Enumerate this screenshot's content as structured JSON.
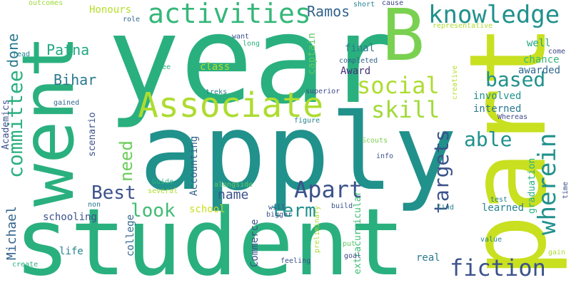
{
  "colors": {
    "background": "#ffffff",
    "teal": "#21918c",
    "green": "#2ab07f",
    "lime": "#addc30",
    "yellow": "#fde725",
    "blue": "#3b528b",
    "purple": "#440154"
  },
  "words": [
    {
      "text": "year",
      "size": 1.0,
      "color": "#2ab07f",
      "orientation": "horizontal"
    },
    {
      "text": "student",
      "size": 0.98,
      "color": "#2ab07f",
      "orientation": "horizontal"
    },
    {
      "text": "apply",
      "size": 0.95,
      "color": "#21918c",
      "orientation": "horizontal"
    },
    {
      "text": "part",
      "size": 0.92,
      "color": "#c8e020",
      "orientation": "vertical"
    },
    {
      "text": "went",
      "size": 0.7,
      "color": "#2ab07f",
      "orientation": "vertical"
    },
    {
      "text": "B",
      "size": 0.65,
      "color": "#7ad151",
      "orientation": "horizontal"
    },
    {
      "text": "Associate",
      "size": 0.4,
      "color": "#addc30",
      "orientation": "horizontal"
    },
    {
      "text": "activities",
      "size": 0.32,
      "color": "#35b779",
      "orientation": "horizontal"
    },
    {
      "text": "knowledge",
      "size": 0.3,
      "color": "#21918c",
      "orientation": "horizontal"
    },
    {
      "text": "wherein",
      "size": 0.3,
      "color": "#21918c",
      "orientation": "vertical"
    },
    {
      "text": "fiction",
      "size": 0.28,
      "color": "#3b528b",
      "orientation": "horizontal"
    },
    {
      "text": "Apart",
      "size": 0.28,
      "color": "#3b528b",
      "orientation": "horizontal"
    },
    {
      "text": "social",
      "size": 0.27,
      "color": "#addc30",
      "orientation": "horizontal"
    },
    {
      "text": "skill",
      "size": 0.26,
      "color": "#a0da39",
      "orientation": "horizontal"
    },
    {
      "text": "targets",
      "size": 0.25,
      "color": "#3b528b",
      "orientation": "vertical"
    },
    {
      "text": "committee",
      "size": 0.24,
      "color": "#2ab07f",
      "orientation": "vertical"
    },
    {
      "text": "able",
      "size": 0.24,
      "color": "#21918c",
      "orientation": "horizontal"
    },
    {
      "text": "based",
      "size": 0.24,
      "color": "#21918c",
      "orientation": "horizontal"
    },
    {
      "text": "look",
      "size": 0.23,
      "color": "#3fbc73",
      "orientation": "horizontal"
    },
    {
      "text": "Best",
      "size": 0.23,
      "color": "#3b528b",
      "orientation": "horizontal"
    },
    {
      "text": "term",
      "size": 0.22,
      "color": "#21918c",
      "orientation": "horizontal"
    },
    {
      "text": "need",
      "size": 0.21,
      "color": "#6ccd5a",
      "orientation": "vertical"
    },
    {
      "text": "Ramos",
      "size": 0.17,
      "color": "#33638d",
      "orientation": "horizontal"
    },
    {
      "text": "Patna",
      "size": 0.16,
      "color": "#22a884",
      "orientation": "horizontal"
    },
    {
      "text": "Bihar",
      "size": 0.16,
      "color": "#2a788e",
      "orientation": "horizontal"
    },
    {
      "text": "done",
      "size": 0.15,
      "color": "#2a788e",
      "orientation": "vertical"
    },
    {
      "text": "Michael",
      "size": 0.15,
      "color": "#33638d",
      "orientation": "vertical"
    },
    {
      "text": "name",
      "size": 0.15,
      "color": "#3b528b",
      "orientation": "horizontal"
    },
    {
      "text": "Honours",
      "size": 0.12,
      "color": "#b5de2b",
      "orientation": "horizontal"
    },
    {
      "text": "class",
      "size": 0.12,
      "color": "#b5de2b",
      "orientation": "horizontal"
    },
    {
      "text": "chance",
      "size": 0.12,
      "color": "#35b779",
      "orientation": "horizontal"
    },
    {
      "text": "awarded",
      "size": 0.12,
      "color": "#31688e",
      "orientation": "horizontal"
    },
    {
      "text": "involved",
      "size": 0.12,
      "color": "#21918c",
      "orientation": "horizontal"
    },
    {
      "text": "interned",
      "size": 0.12,
      "color": "#2a788e",
      "orientation": "horizontal"
    },
    {
      "text": "captain",
      "size": 0.12,
      "color": "#5ec962",
      "orientation": "vertical"
    },
    {
      "text": "final",
      "size": 0.12,
      "color": "#2a788e",
      "orientation": "horizontal"
    },
    {
      "text": "Award",
      "size": 0.12,
      "color": "#472f7d",
      "orientation": "horizontal"
    },
    {
      "text": "well",
      "size": 0.12,
      "color": "#22a884",
      "orientation": "horizontal"
    },
    {
      "text": "schooling",
      "size": 0.12,
      "color": "#3b528b",
      "orientation": "horizontal"
    },
    {
      "text": "school",
      "size": 0.11,
      "color": "#c8e020",
      "orientation": "horizontal"
    },
    {
      "text": "college",
      "size": 0.11,
      "color": "#31688e",
      "orientation": "vertical"
    },
    {
      "text": "life",
      "size": 0.11,
      "color": "#26828e",
      "orientation": "horizontal"
    },
    {
      "text": "real",
      "size": 0.11,
      "color": "#2a788e",
      "orientation": "horizontal"
    },
    {
      "text": "learned",
      "size": 0.11,
      "color": "#26828e",
      "orientation": "horizontal"
    },
    {
      "text": "Commerce",
      "size": 0.11,
      "color": "#3b528b",
      "orientation": "vertical"
    },
    {
      "text": "Accounting",
      "size": 0.11,
      "color": "#33638d",
      "orientation": "vertical"
    },
    {
      "text": "Academics",
      "size": 0.1,
      "color": "#3b528b",
      "orientation": "vertical"
    },
    {
      "text": "scenario",
      "size": 0.1,
      "color": "#3b528b",
      "orientation": "vertical"
    },
    {
      "text": "extracurricular",
      "size": 0.1,
      "color": "#3fbc73",
      "orientation": "vertical"
    },
    {
      "text": "graduation",
      "size": 0.1,
      "color": "#2ab07f",
      "orientation": "vertical"
    },
    {
      "text": "outcomes",
      "size": 0.06,
      "color": "#9fda3a",
      "orientation": "horizontal"
    },
    {
      "text": "short",
      "size": 0.06,
      "color": "#26828e",
      "orientation": "horizontal"
    },
    {
      "text": "cause",
      "size": 0.06,
      "color": "#404688",
      "orientation": "horizontal"
    },
    {
      "text": "representative",
      "size": 0.06,
      "color": "#addc30",
      "orientation": "horizontal"
    },
    {
      "text": "role",
      "size": 0.06,
      "color": "#31688e",
      "orientation": "horizontal"
    },
    {
      "text": "want",
      "size": 0.06,
      "color": "#3b528b",
      "orientation": "horizontal"
    },
    {
      "text": "long",
      "size": 0.06,
      "color": "#2ab07f",
      "orientation": "horizontal"
    },
    {
      "text": "come",
      "size": 0.06,
      "color": "#3e4989",
      "orientation": "horizontal"
    },
    {
      "text": "read",
      "size": 0.06,
      "color": "#26828e",
      "orientation": "horizontal"
    },
    {
      "text": "free",
      "size": 0.06,
      "color": "#2ab07f",
      "orientation": "horizontal"
    },
    {
      "text": "completed",
      "size": 0.06,
      "color": "#33638d",
      "orientation": "horizontal"
    },
    {
      "text": "treks",
      "size": 0.06,
      "color": "#26828e",
      "orientation": "horizontal"
    },
    {
      "text": "superior",
      "size": 0.06,
      "color": "#3e4989",
      "orientation": "horizontal"
    },
    {
      "text": "creative",
      "size": 0.06,
      "color": "#b5de2b",
      "orientation": "vertical"
    },
    {
      "text": "gained",
      "size": 0.06,
      "color": "#31688e",
      "orientation": "horizontal"
    },
    {
      "text": "Whereas",
      "size": 0.06,
      "color": "#3e4989",
      "orientation": "horizontal"
    },
    {
      "text": "figure",
      "size": 0.06,
      "color": "#26828e",
      "orientation": "horizontal"
    },
    {
      "text": "Scouts",
      "size": 0.06,
      "color": "#7ad151",
      "orientation": "horizontal"
    },
    {
      "text": "info",
      "size": 0.06,
      "color": "#3b528b",
      "orientation": "horizontal"
    },
    {
      "text": "test",
      "size": 0.06,
      "color": "#26828e",
      "orientation": "horizontal"
    },
    {
      "text": "time",
      "size": 0.06,
      "color": "#3b528b",
      "orientation": "vertical"
    },
    {
      "text": "Guide",
      "size": 0.06,
      "color": "#2ab07f",
      "orientation": "horizontal"
    },
    {
      "text": "several",
      "size": 0.06,
      "color": "#addc30",
      "orientation": "horizontal"
    },
    {
      "text": "alongside",
      "size": 0.06,
      "color": "#5ec962",
      "orientation": "horizontal"
    },
    {
      "text": "non",
      "size": 0.06,
      "color": "#2a788e",
      "orientation": "horizontal"
    },
    {
      "text": "will",
      "size": 0.06,
      "color": "#3b528b",
      "orientation": "horizontal"
    },
    {
      "text": "bigger",
      "size": 0.06,
      "color": "#3b528b",
      "orientation": "horizontal"
    },
    {
      "text": "build",
      "size": 0.06,
      "color": "#3b528b",
      "orientation": "horizontal"
    },
    {
      "text": "find",
      "size": 0.06,
      "color": "#26828e",
      "orientation": "horizontal"
    },
    {
      "text": "value",
      "size": 0.06,
      "color": "#26828e",
      "orientation": "horizontal"
    },
    {
      "text": "gain",
      "size": 0.06,
      "color": "#addc30",
      "orientation": "horizontal"
    },
    {
      "text": "put",
      "size": 0.06,
      "color": "#5ec962",
      "orientation": "horizontal"
    },
    {
      "text": "preliminary",
      "size": 0.06,
      "color": "#addc30",
      "orientation": "vertical"
    },
    {
      "text": "goal",
      "size": 0.06,
      "color": "#3e4989",
      "orientation": "horizontal"
    },
    {
      "text": "feeling",
      "size": 0.06,
      "color": "#3b528b",
      "orientation": "horizontal"
    },
    {
      "text": "create",
      "size": 0.06,
      "color": "#2ab07f",
      "orientation": "horizontal"
    }
  ]
}
